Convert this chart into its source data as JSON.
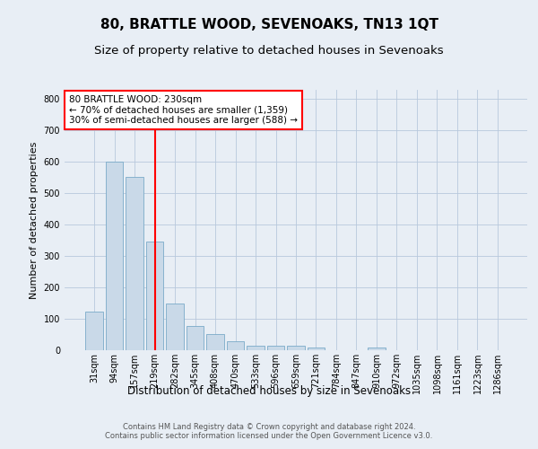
{
  "title": "80, BRATTLE WOOD, SEVENOAKS, TN13 1QT",
  "subtitle": "Size of property relative to detached houses in Sevenoaks",
  "xlabel": "Distribution of detached houses by size in Sevenoaks",
  "ylabel": "Number of detached properties",
  "categories": [
    "31sqm",
    "94sqm",
    "157sqm",
    "219sqm",
    "282sqm",
    "345sqm",
    "408sqm",
    "470sqm",
    "533sqm",
    "596sqm",
    "659sqm",
    "721sqm",
    "784sqm",
    "847sqm",
    "910sqm",
    "972sqm",
    "1035sqm",
    "1098sqm",
    "1161sqm",
    "1223sqm",
    "1286sqm"
  ],
  "values": [
    123,
    600,
    553,
    345,
    148,
    78,
    52,
    30,
    15,
    13,
    13,
    8,
    0,
    0,
    8,
    0,
    0,
    0,
    0,
    0,
    0
  ],
  "bar_color": "#c9d9e8",
  "bar_edge_color": "#7aaac8",
  "grid_color": "#b8c8dc",
  "background_color": "#e8eef5",
  "vline_color": "red",
  "vline_x": 3.5,
  "annotation_text": "80 BRATTLE WOOD: 230sqm\n← 70% of detached houses are smaller (1,359)\n30% of semi-detached houses are larger (588) →",
  "annotation_box_color": "white",
  "annotation_box_edge": "red",
  "ylim": [
    0,
    830
  ],
  "yticks": [
    0,
    100,
    200,
    300,
    400,
    500,
    600,
    700,
    800
  ],
  "footer_text": "Contains HM Land Registry data © Crown copyright and database right 2024.\nContains public sector information licensed under the Open Government Licence v3.0.",
  "title_fontsize": 11,
  "subtitle_fontsize": 9.5,
  "xlabel_fontsize": 8.5,
  "ylabel_fontsize": 8,
  "tick_fontsize": 7,
  "annotation_fontsize": 7.5,
  "footer_fontsize": 6
}
